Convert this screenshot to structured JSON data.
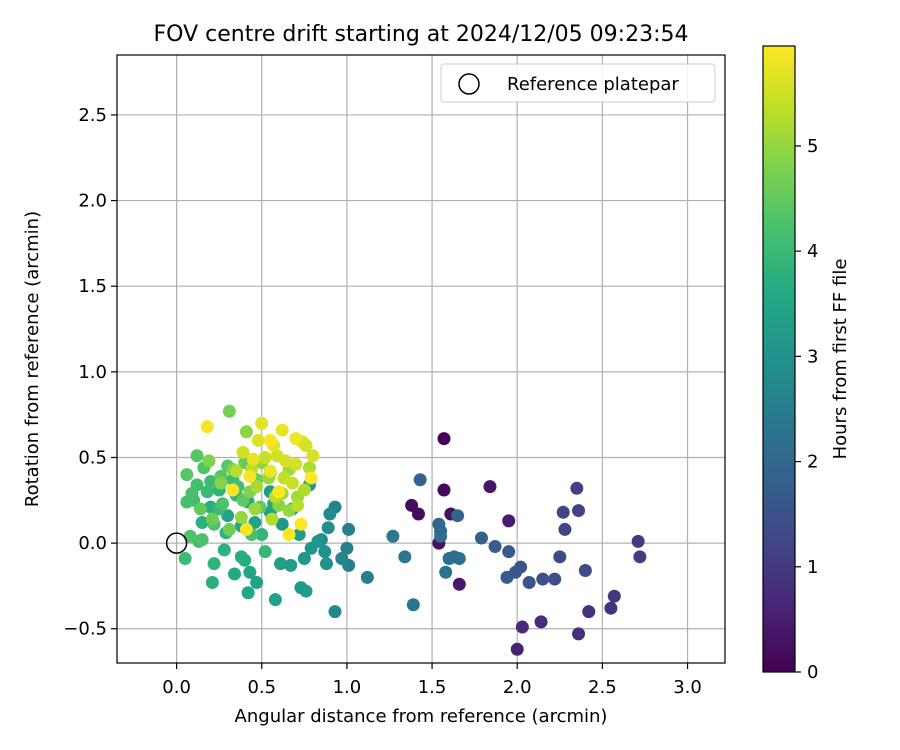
{
  "chart_data": {
    "type": "scatter",
    "title": "FOV centre drift starting at 2024/12/05 09:23:54",
    "xlabel": "Angular distance from reference (arcmin)",
    "ylabel": "Rotation from reference (arcmin)",
    "xlim": [
      -0.35,
      3.22
    ],
    "ylim": [
      -0.7,
      2.85
    ],
    "xticks": [
      0.0,
      0.5,
      1.0,
      1.5,
      2.0,
      2.5,
      3.0
    ],
    "xtick_labels": [
      "0.0",
      "0.5",
      "1.0",
      "1.5",
      "2.0",
      "2.5",
      "3.0"
    ],
    "yticks": [
      -0.5,
      0.0,
      0.5,
      1.0,
      1.5,
      2.0,
      2.5
    ],
    "ytick_labels": [
      "−0.5",
      "0.0",
      "0.5",
      "1.0",
      "1.5",
      "2.0",
      "2.5"
    ],
    "grid": true,
    "legend": {
      "placement": "top-right",
      "entries": [
        "Reference platepar"
      ]
    },
    "reference": {
      "x": 0.0,
      "y": 0.0
    },
    "colorbar": {
      "label": "Hours from first FF file",
      "colormap": "viridis",
      "range": [
        0,
        5.95
      ],
      "ticks": [
        0,
        1,
        2,
        3,
        4,
        5
      ],
      "tick_labels": [
        "0",
        "1",
        "2",
        "3",
        "4",
        "5"
      ]
    },
    "points": [
      [
        1.57,
        0.61,
        0.05
      ],
      [
        1.57,
        0.31,
        0.1
      ],
      [
        1.38,
        0.22,
        0.2
      ],
      [
        1.42,
        0.17,
        0.15
      ],
      [
        1.61,
        0.17,
        0.25
      ],
      [
        1.54,
        0.0,
        0.3
      ],
      [
        1.66,
        -0.24,
        0.4
      ],
      [
        1.84,
        0.33,
        0.35
      ],
      [
        1.95,
        0.13,
        0.45
      ],
      [
        2.0,
        -0.62,
        0.6
      ],
      [
        2.03,
        -0.49,
        0.7
      ],
      [
        2.14,
        -0.46,
        0.75
      ],
      [
        2.36,
        -0.53,
        0.8
      ],
      [
        2.42,
        -0.4,
        0.85
      ],
      [
        2.55,
        -0.38,
        0.9
      ],
      [
        2.57,
        -0.31,
        0.95
      ],
      [
        2.71,
        0.01,
        1.0
      ],
      [
        2.72,
        -0.08,
        1.05
      ],
      [
        2.35,
        0.32,
        1.1
      ],
      [
        2.36,
        0.19,
        1.15
      ],
      [
        2.27,
        0.18,
        1.2
      ],
      [
        2.28,
        0.08,
        1.25
      ],
      [
        2.25,
        -0.08,
        1.3
      ],
      [
        2.4,
        -0.16,
        1.35
      ],
      [
        2.22,
        -0.21,
        1.4
      ],
      [
        2.15,
        -0.21,
        1.45
      ],
      [
        2.07,
        -0.23,
        1.5
      ],
      [
        2.02,
        -0.14,
        1.55
      ],
      [
        1.99,
        -0.17,
        1.6
      ],
      [
        1.94,
        -0.2,
        1.65
      ],
      [
        1.95,
        -0.05,
        1.7
      ],
      [
        1.87,
        -0.02,
        1.75
      ],
      [
        1.79,
        0.03,
        1.8
      ],
      [
        1.43,
        0.37,
        1.85
      ],
      [
        1.65,
        0.16,
        1.9
      ],
      [
        1.55,
        0.07,
        1.95
      ],
      [
        1.54,
        0.11,
        2.0
      ],
      [
        1.55,
        0.04,
        2.05
      ],
      [
        1.63,
        -0.08,
        2.1
      ],
      [
        1.6,
        -0.09,
        2.15
      ],
      [
        1.66,
        -0.09,
        2.2
      ],
      [
        1.58,
        -0.17,
        2.25
      ],
      [
        1.39,
        -0.36,
        2.3
      ],
      [
        1.34,
        -0.08,
        2.35
      ],
      [
        1.27,
        0.04,
        2.4
      ],
      [
        1.12,
        -0.2,
        2.45
      ],
      [
        1.01,
        0.08,
        2.5
      ],
      [
        1.0,
        -0.03,
        2.55
      ],
      [
        1.01,
        -0.13,
        2.6
      ],
      [
        0.93,
        0.21,
        2.65
      ],
      [
        0.97,
        -0.09,
        2.7
      ],
      [
        0.93,
        -0.4,
        2.75
      ],
      [
        0.9,
        0.17,
        2.8
      ],
      [
        0.89,
        0.09,
        2.85
      ],
      [
        0.85,
        0.02,
        2.9
      ],
      [
        0.87,
        -0.05,
        2.95
      ],
      [
        0.88,
        -0.12,
        3.0
      ],
      [
        0.83,
        0.01,
        3.05
      ],
      [
        0.79,
        -0.03,
        3.1
      ],
      [
        0.75,
        -0.09,
        3.15
      ],
      [
        0.73,
        -0.26,
        3.2
      ],
      [
        0.76,
        -0.28,
        3.25
      ],
      [
        0.67,
        -0.13,
        3.3
      ],
      [
        0.61,
        -0.12,
        3.35
      ],
      [
        0.58,
        -0.33,
        3.4
      ],
      [
        0.47,
        -0.23,
        3.45
      ],
      [
        0.43,
        -0.17,
        3.5
      ],
      [
        0.42,
        -0.29,
        3.55
      ],
      [
        0.34,
        -0.18,
        3.6
      ],
      [
        0.4,
        -0.1,
        3.65
      ],
      [
        0.38,
        -0.08,
        3.7
      ],
      [
        0.21,
        -0.23,
        3.75
      ],
      [
        0.28,
        -0.04,
        3.8
      ],
      [
        0.22,
        -0.12,
        3.85
      ],
      [
        0.5,
        0.05,
        3.9
      ],
      [
        0.52,
        -0.05,
        3.95
      ],
      [
        0.05,
        -0.09,
        4.05
      ],
      [
        0.13,
        0.01,
        4.1
      ],
      [
        0.55,
        0.3,
        3.2
      ],
      [
        0.62,
        0.11,
        3.1
      ],
      [
        0.68,
        0.2,
        3.3
      ],
      [
        0.78,
        0.34,
        3.15
      ],
      [
        0.55,
        0.18,
        3.4
      ],
      [
        0.72,
        0.05,
        3.2
      ],
      [
        0.3,
        0.16,
        3.5
      ],
      [
        0.38,
        0.1,
        3.6
      ],
      [
        0.2,
        0.21,
        3.7
      ],
      [
        0.46,
        0.12,
        3.45
      ],
      [
        0.25,
        0.31,
        3.8
      ],
      [
        0.35,
        0.28,
        3.9
      ],
      [
        0.15,
        0.12,
        3.75
      ],
      [
        0.42,
        0.24,
        3.65
      ],
      [
        0.57,
        0.23,
        3.55
      ],
      [
        0.29,
        0.06,
        3.85
      ],
      [
        0.18,
        0.3,
        4.0
      ],
      [
        0.1,
        0.25,
        4.1
      ],
      [
        0.06,
        0.24,
        4.2
      ],
      [
        0.25,
        0.2,
        4.0
      ],
      [
        0.33,
        0.37,
        4.05
      ],
      [
        0.2,
        0.36,
        4.1
      ],
      [
        0.12,
        0.34,
        4.15
      ],
      [
        0.09,
        0.29,
        4.2
      ],
      [
        0.22,
        0.11,
        4.25
      ],
      [
        0.08,
        0.04,
        4.3
      ],
      [
        0.16,
        0.44,
        4.3
      ],
      [
        0.3,
        0.45,
        4.35
      ],
      [
        0.44,
        0.05,
        4.2
      ],
      [
        0.36,
        0.33,
        4.15
      ],
      [
        0.15,
        0.02,
        4.25
      ],
      [
        0.27,
        0.23,
        4.3
      ],
      [
        0.12,
        0.51,
        4.35
      ],
      [
        0.06,
        0.4,
        4.4
      ],
      [
        0.26,
        0.39,
        4.4
      ],
      [
        0.39,
        0.25,
        4.45
      ],
      [
        0.49,
        0.21,
        4.5
      ],
      [
        0.4,
        0.47,
        4.55
      ],
      [
        0.14,
        0.2,
        4.5
      ],
      [
        0.21,
        0.14,
        4.6
      ],
      [
        0.31,
        0.08,
        4.65
      ],
      [
        0.47,
        0.37,
        4.6
      ],
      [
        0.55,
        0.41,
        4.7
      ],
      [
        0.33,
        0.43,
        4.75
      ],
      [
        0.19,
        0.48,
        4.8
      ],
      [
        0.43,
        0.3,
        4.8
      ],
      [
        0.26,
        0.35,
        4.85
      ],
      [
        0.31,
        0.77,
        4.7
      ],
      [
        0.41,
        0.65,
        4.9
      ],
      [
        0.5,
        0.47,
        4.95
      ],
      [
        0.6,
        0.22,
        4.9
      ],
      [
        0.66,
        0.19,
        5.0
      ],
      [
        0.38,
        0.15,
        5.0
      ],
      [
        0.46,
        0.2,
        5.05
      ],
      [
        0.54,
        0.38,
        5.05
      ],
      [
        0.66,
        0.43,
        5.1
      ],
      [
        0.71,
        0.27,
        5.1
      ],
      [
        0.62,
        0.29,
        5.15
      ],
      [
        0.47,
        0.33,
        5.15
      ],
      [
        0.78,
        0.44,
        5.2
      ],
      [
        0.75,
        0.31,
        5.25
      ],
      [
        0.71,
        0.22,
        5.3
      ],
      [
        0.56,
        0.14,
        5.25
      ],
      [
        0.35,
        0.42,
        5.3
      ],
      [
        0.44,
        0.43,
        5.35
      ],
      [
        0.58,
        0.27,
        5.35
      ],
      [
        0.63,
        0.38,
        5.4
      ],
      [
        0.68,
        0.35,
        5.45
      ],
      [
        0.52,
        0.5,
        5.45
      ],
      [
        0.39,
        0.53,
        5.5
      ],
      [
        0.59,
        0.51,
        5.5
      ],
      [
        0.7,
        0.46,
        5.55
      ],
      [
        0.76,
        0.57,
        5.55
      ],
      [
        0.8,
        0.51,
        5.6
      ],
      [
        0.74,
        0.59,
        5.6
      ],
      [
        0.64,
        0.48,
        5.6
      ],
      [
        0.48,
        0.6,
        5.65
      ],
      [
        0.57,
        0.57,
        5.7
      ],
      [
        0.5,
        0.7,
        5.7
      ],
      [
        0.45,
        0.49,
        5.75
      ],
      [
        0.62,
        0.66,
        5.75
      ],
      [
        0.7,
        0.61,
        5.8
      ],
      [
        0.55,
        0.42,
        5.8
      ],
      [
        0.43,
        0.39,
        5.85
      ],
      [
        0.33,
        0.31,
        5.85
      ],
      [
        0.18,
        0.68,
        5.9
      ],
      [
        0.55,
        0.6,
        5.9
      ],
      [
        0.66,
        0.05,
        5.9
      ],
      [
        0.73,
        0.11,
        5.95
      ],
      [
        0.79,
        0.38,
        5.95
      ],
      [
        0.6,
        0.3,
        5.95
      ],
      [
        0.41,
        0.08,
        5.9
      ]
    ]
  }
}
